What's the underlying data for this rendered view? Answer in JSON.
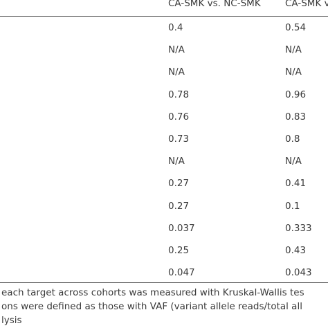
{
  "table": {
    "header": [
      "CA-SMK vs. NC-SMK",
      "CA-SMK v"
    ],
    "rows": [
      [
        "0.4",
        "0.54"
      ],
      [
        "N/A",
        "N/A"
      ],
      [
        "N/A",
        "N/A"
      ],
      [
        "0.78",
        "0.96"
      ],
      [
        "0.76",
        "0.83"
      ],
      [
        "0.73",
        "0.8"
      ],
      [
        "N/A",
        "N/A"
      ],
      [
        "0.27",
        "0.41"
      ],
      [
        "0.27",
        "0.1"
      ],
      [
        "0.037",
        "0.333"
      ],
      [
        "0.25",
        "0.43"
      ],
      [
        "0.047",
        "0.043"
      ]
    ]
  },
  "footnote": [
    "each target across cohorts was measured with Kruskal-Wallis tes",
    "ons were defined as those with VAF (variant allele reads/total all",
    "lysis"
  ]
}
